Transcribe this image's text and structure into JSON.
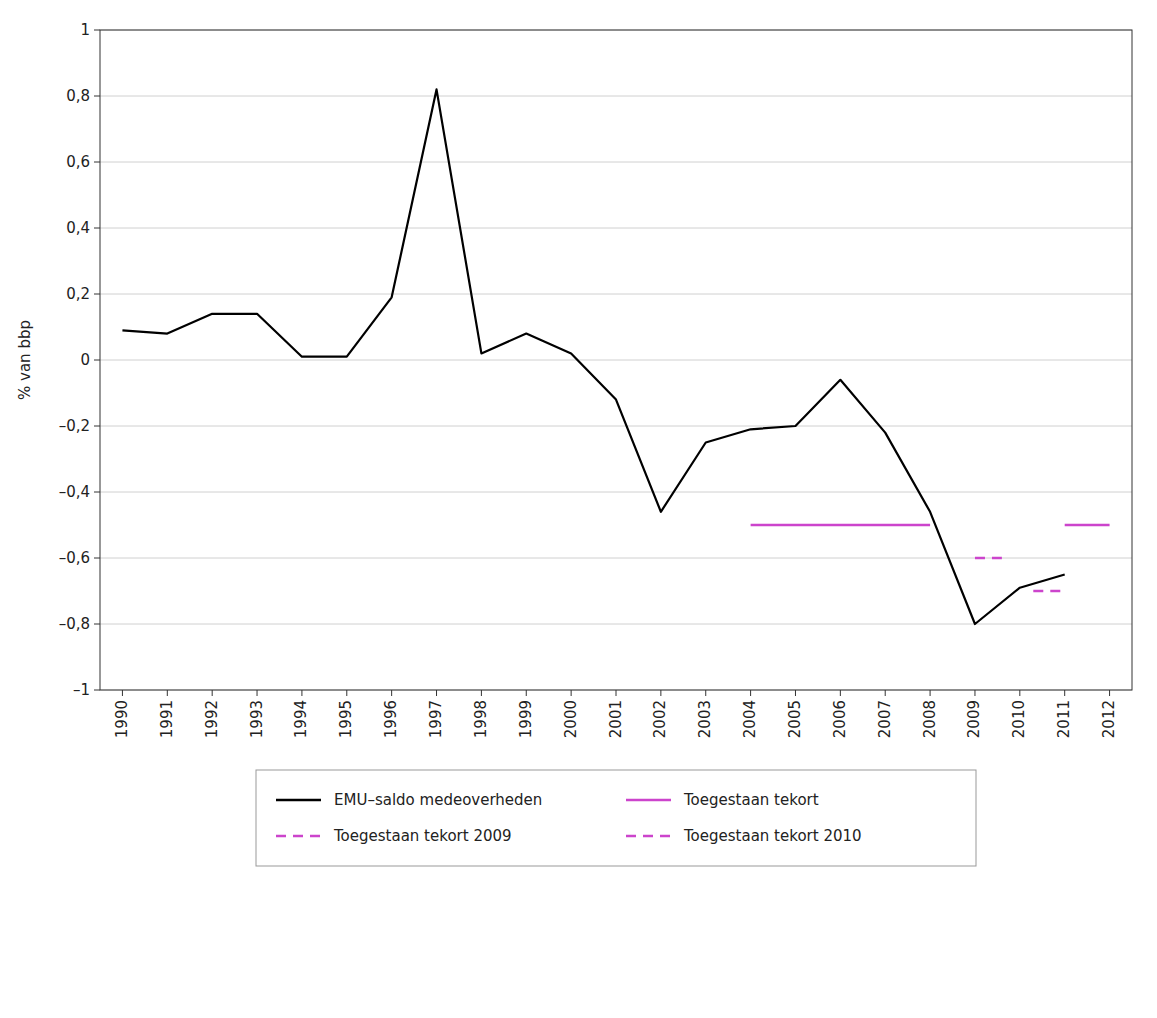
{
  "chart_data": {
    "type": "line",
    "ylabel": "% van bbp",
    "xlim": [
      1989.5,
      2012.5
    ],
    "xticks": [
      1990,
      1991,
      1992,
      1993,
      1994,
      1995,
      1996,
      1997,
      1998,
      1999,
      2000,
      2001,
      2002,
      2003,
      2004,
      2005,
      2006,
      2007,
      2008,
      2009,
      2010,
      2011,
      2012
    ],
    "ylim": [
      -1.0,
      1.0
    ],
    "yticks": [
      {
        "value": -1.0,
        "label": "–1"
      },
      {
        "value": -0.8,
        "label": "–0,8"
      },
      {
        "value": -0.6,
        "label": "–0,6"
      },
      {
        "value": -0.4,
        "label": "–0,4"
      },
      {
        "value": -0.2,
        "label": "–0,2"
      },
      0,
      {
        "value": 0.2,
        "label": "0,2"
      },
      {
        "value": 0.4,
        "label": "0,4"
      },
      {
        "value": 0.6,
        "label": "0,6"
      },
      {
        "value": 0.8,
        "label": "0,8"
      },
      1
    ],
    "grid": true,
    "legend": "bottom",
    "series": [
      {
        "name": "EMU–saldo medeoverheden",
        "color": "#000000",
        "line_style": "solid",
        "x": [
          1990,
          1991,
          1992,
          1993,
          1994,
          1995,
          1996,
          1997,
          1998,
          1999,
          2000,
          2001,
          2002,
          2003,
          2004,
          2005,
          2006,
          2007,
          2008,
          2009,
          2010,
          2011
        ],
        "values": [
          0.09,
          0.08,
          0.14,
          0.14,
          0.01,
          0.01,
          0.19,
          0.82,
          0.02,
          0.08,
          0.02,
          -0.12,
          -0.46,
          -0.25,
          -0.21,
          -0.2,
          -0.06,
          -0.22,
          -0.46,
          -0.8,
          -0.69,
          -0.65
        ]
      },
      {
        "name": "Toegestaan tekort",
        "color": "#cc44cc",
        "line_style": "solid",
        "x": [
          2004,
          2008,
          null,
          2011,
          2012
        ],
        "values": [
          -0.5,
          -0.5,
          null,
          -0.5,
          -0.5
        ]
      },
      {
        "name": "Toegestaan tekort 2009",
        "color": "#cc44cc",
        "line_style": "dashed",
        "x": [
          2009,
          2009.6
        ],
        "values": [
          -0.6,
          -0.6
        ]
      },
      {
        "name": "Toegestaan tekort 2010",
        "color": "#cc44cc",
        "line_style": "dashed",
        "x": [
          2010.3,
          2011.0
        ],
        "values": [
          -0.7,
          -0.7
        ]
      }
    ]
  }
}
